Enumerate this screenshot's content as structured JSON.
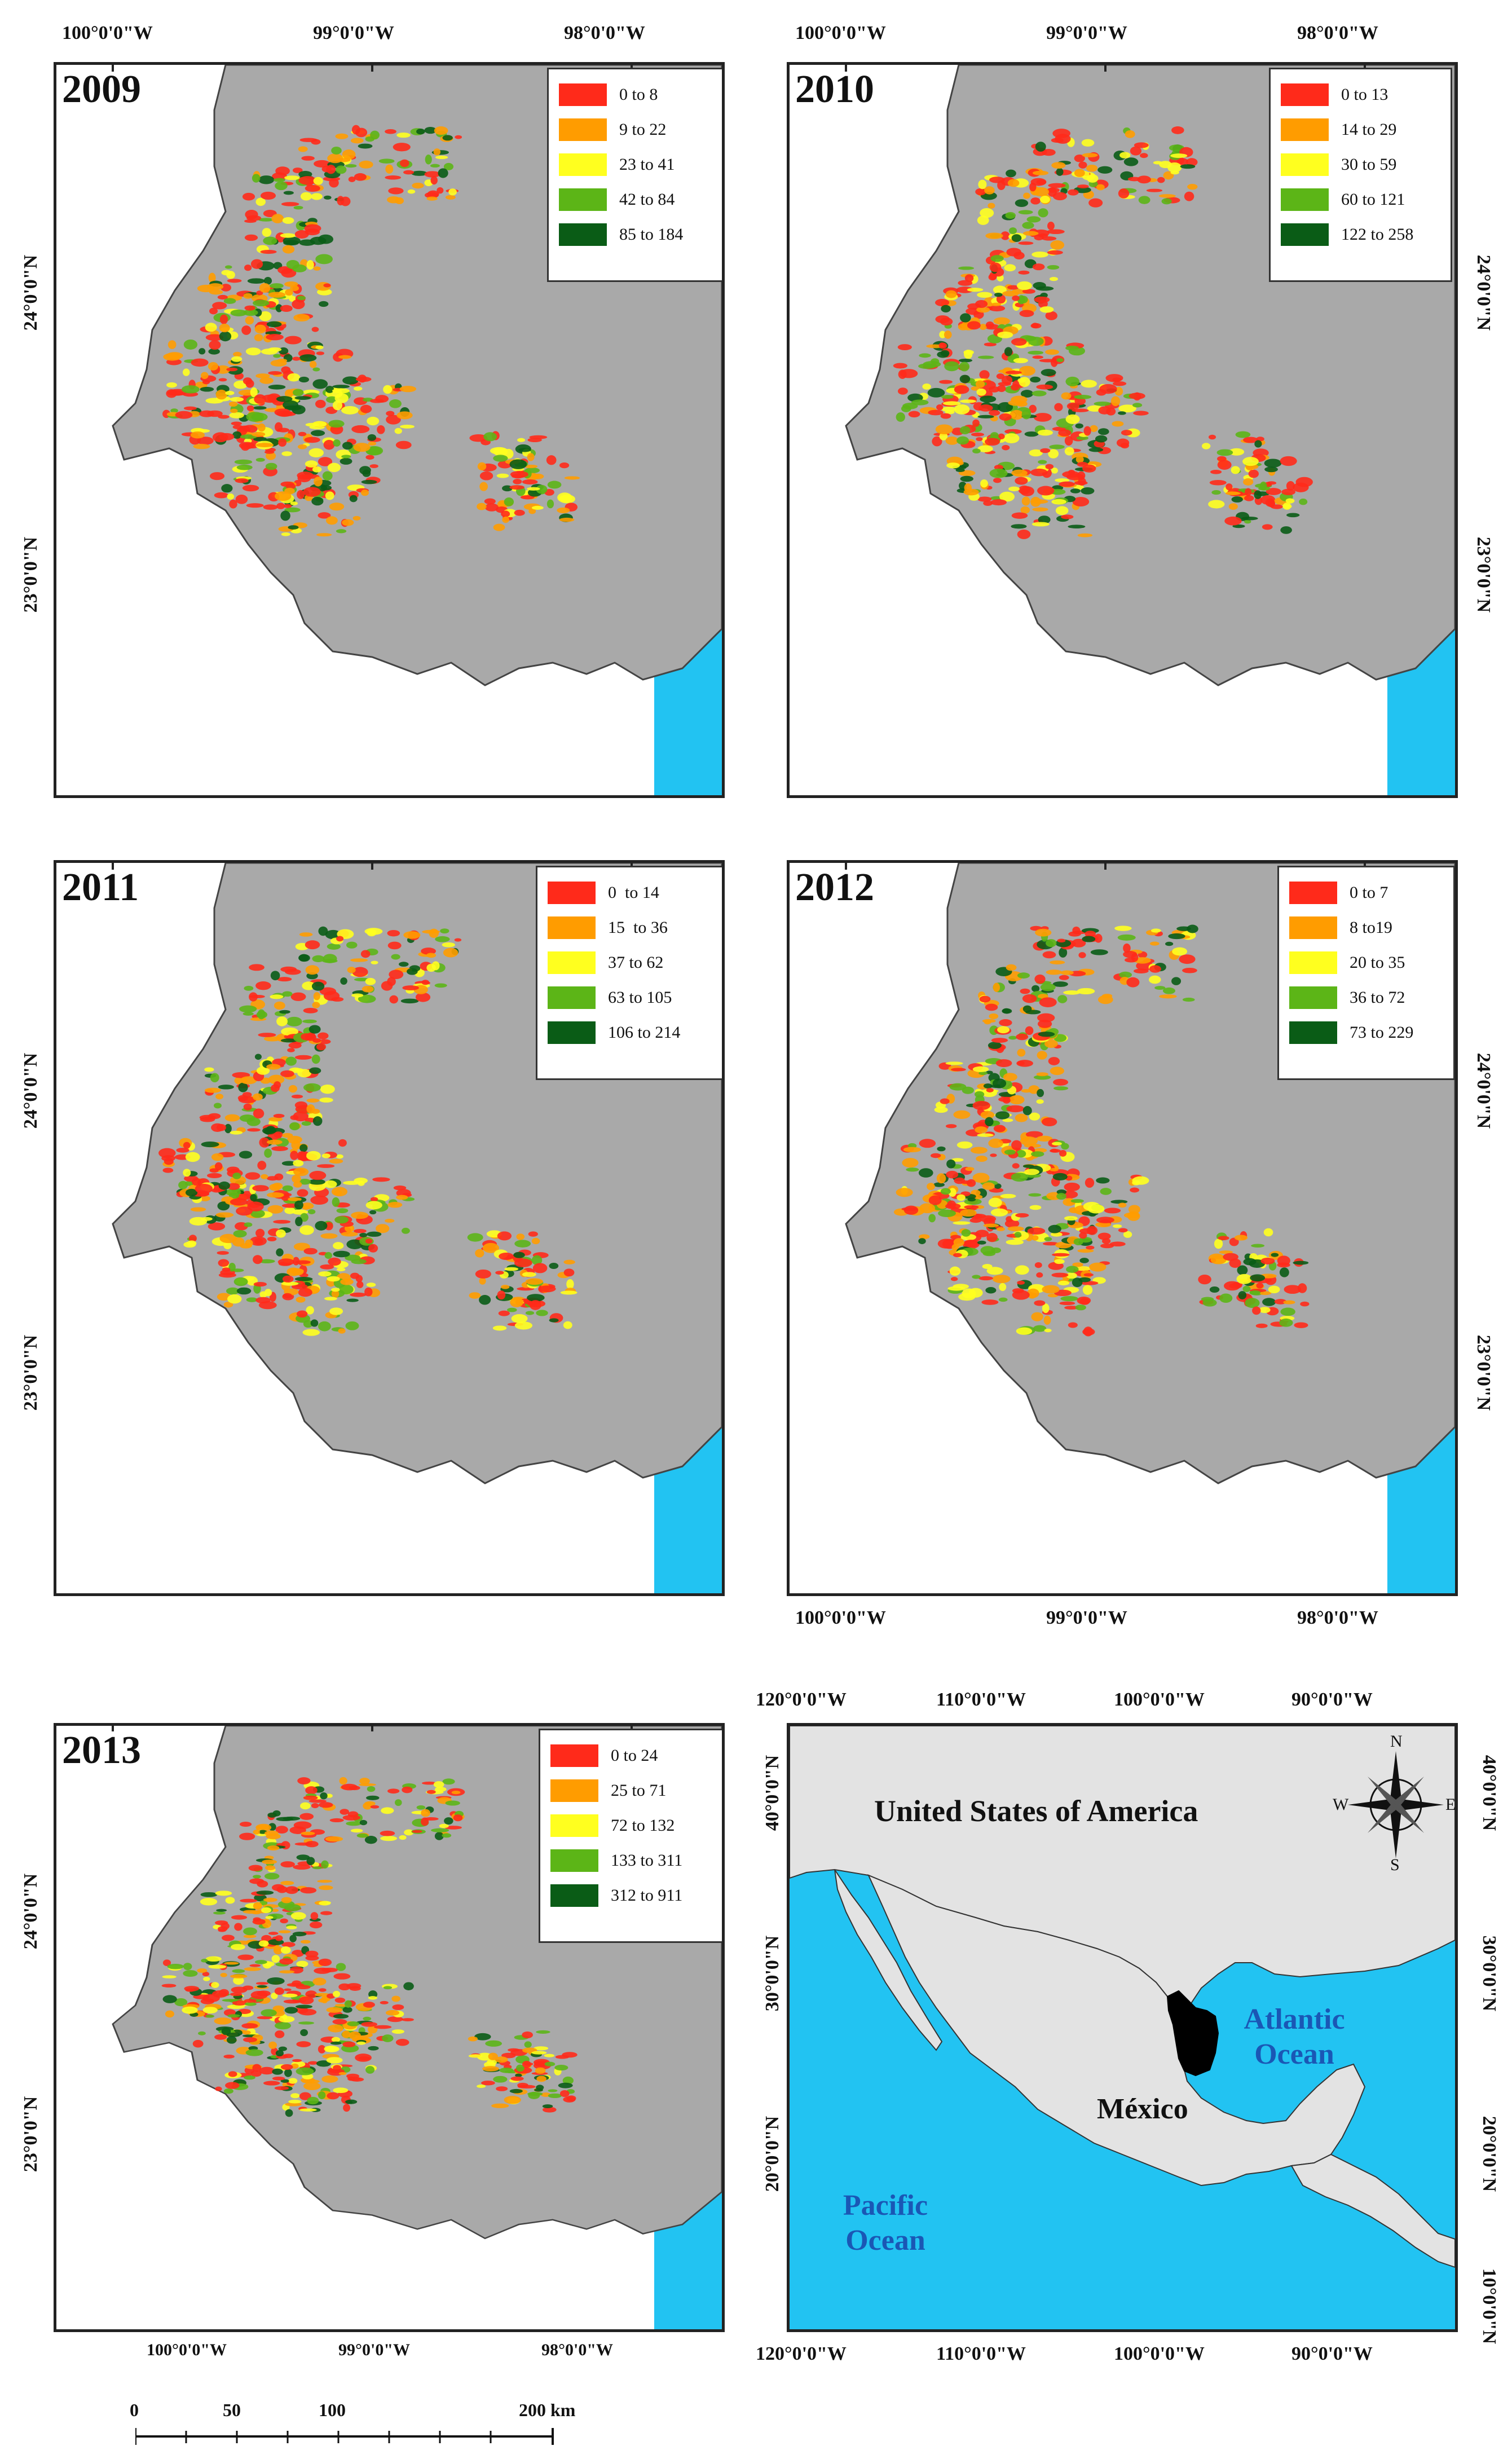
{
  "colors": {
    "water": "#22c3f2",
    "land": "#a9a9a9",
    "frame": "#222222",
    "outside_land": "#e3e3e3",
    "state_fill": "#000000",
    "class1": "#ff2a1a",
    "class2": "#ff9c00",
    "class3": "#ffff1f",
    "class4": "#5cb517",
    "class5": "#0a5c16"
  },
  "panels": [
    {
      "year": "2009",
      "legend": [
        "0 to 8",
        "9 to 22",
        "23 to 41",
        "42 to 84",
        "85 to 184"
      ]
    },
    {
      "year": "2010",
      "legend": [
        "0 to 13",
        "14 to 29",
        "30 to 59",
        "60 to 121",
        "122 to 258"
      ]
    },
    {
      "year": "2011",
      "legend": [
        "0  to 14",
        "15  to 36",
        "37 to 62",
        "63 to 105",
        "106 to 214"
      ]
    },
    {
      "year": "2012",
      "legend": [
        "0 to 7",
        "8 to19",
        "20 to 35",
        "36 to 72",
        "73 to 229"
      ]
    },
    {
      "year": "2013",
      "legend": [
        "0 to 24",
        "25 to 71",
        "72 to 132",
        "133 to 311",
        "312 to 911"
      ]
    }
  ],
  "regional_coords": {
    "lon": [
      "100°0'0\"W",
      "99°0'0\"W",
      "98°0'0\"W"
    ],
    "lat": [
      "24°0'0\"N",
      "23°0'0\"N"
    ]
  },
  "locator": {
    "lon": [
      "120°0'0\"W",
      "110°0'0\"W",
      "100°0'0\"W",
      "90°0'0\"W"
    ],
    "lat": [
      "40°0'0\"N",
      "30°0'0\"N",
      "20°0'0\"N",
      "10°0'0\"N"
    ],
    "usa_label": "United States of America",
    "mexico_label": "México",
    "atlantic_label": "Atlantic Ocean",
    "pacific_label": "Pacific Ocean",
    "compass": {
      "n": "N",
      "s": "S",
      "e": "E",
      "w": "W"
    }
  },
  "scale_bar": {
    "labels": [
      "0",
      "50",
      "100",
      "200 km"
    ]
  }
}
